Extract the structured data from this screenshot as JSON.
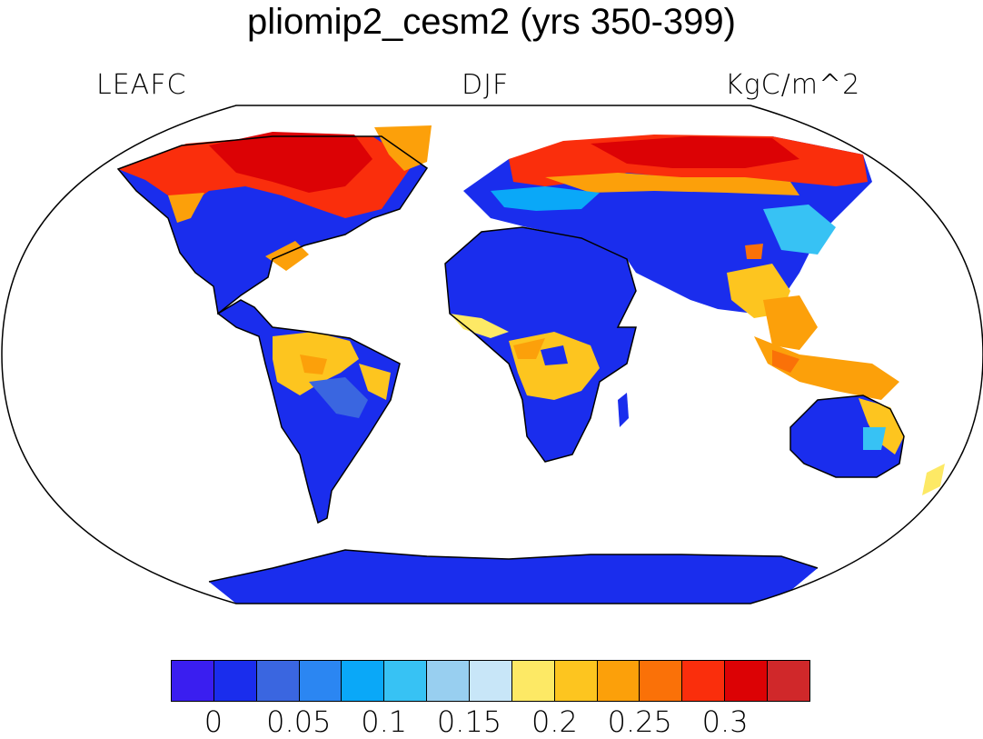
{
  "title": "pliomip2_cesm2 (yrs 350-399)",
  "left_string": "LEAFC",
  "center_string": "DJF",
  "right_string": "KgC/m^2",
  "colorbar": {
    "colors": [
      "#3a1ef0",
      "#1a2ded",
      "#3a66e0",
      "#2b86f2",
      "#0aa8f8",
      "#37c2f4",
      "#98cff0",
      "#c8e6f8",
      "#fde965",
      "#fdc51f",
      "#fca00a",
      "#fa7108",
      "#fa2e0c",
      "#dc0205",
      "#d0282a"
    ],
    "tick_labels": [
      "0",
      "0.05",
      "0.1",
      "0.15",
      "0.2",
      "0.25",
      "0.3"
    ]
  },
  "map": {
    "projection": "robinson",
    "legend": "colorbar-bottom"
  }
}
